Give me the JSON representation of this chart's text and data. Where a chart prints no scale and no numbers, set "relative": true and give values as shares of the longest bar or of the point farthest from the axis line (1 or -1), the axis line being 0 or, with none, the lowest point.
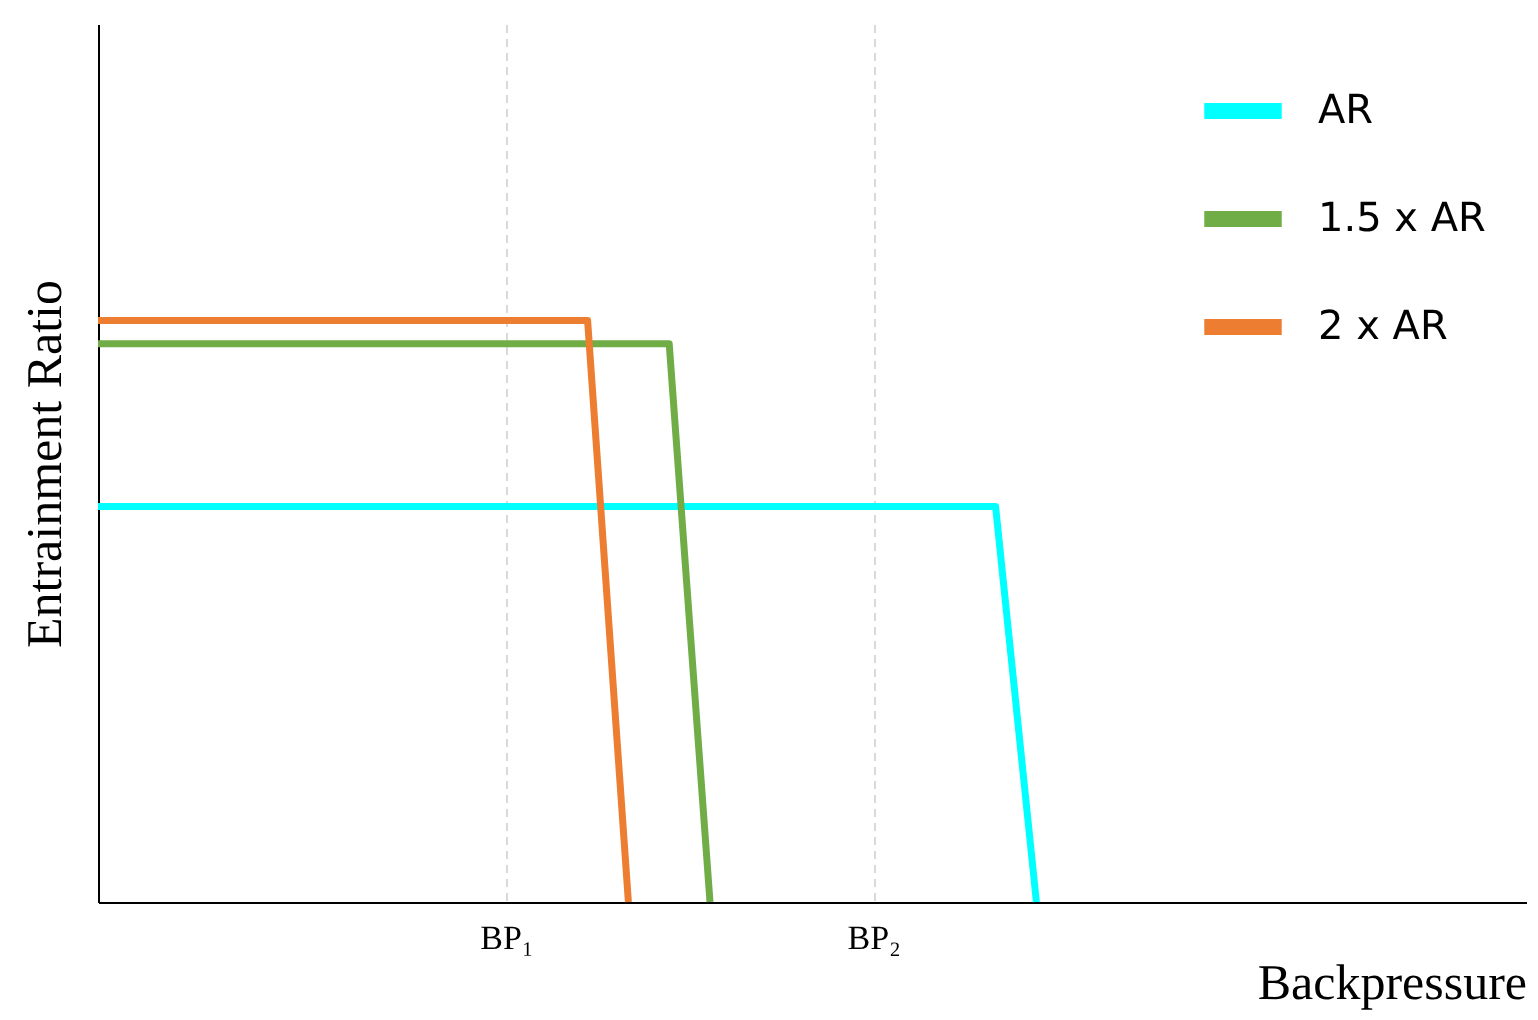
{
  "chart_data": {
    "type": "line",
    "relative": true,
    "xlabel": "Backpressure",
    "ylabel": "Entrainment Ratio",
    "categories": [
      null,
      null,
      null,
      null,
      null,
      null,
      null,
      null,
      null,
      null,
      "BP₁",
      null,
      null,
      null,
      null,
      null,
      null,
      null,
      null,
      "BP₂",
      null,
      null,
      null,
      null,
      null,
      null,
      null,
      null,
      null,
      null,
      null,
      null,
      null,
      null,
      null,
      null
    ],
    "grid": "x",
    "legend": "top right",
    "tick_labels": "x",
    "marker": "none",
    "line_style": "solid",
    "series": [
      {
        "name": "AR",
        "color": "#00ffff",
        "values": [
          0.68,
          0.68,
          0.68,
          0.68,
          0.68,
          0.68,
          0.68,
          0.68,
          0.68,
          0.68,
          0.68,
          0.68,
          0.68,
          0.68,
          0.68,
          0.68,
          0.68,
          0.68,
          0.68,
          0.68,
          0.68,
          0.68,
          0.68,
          0,
          null,
          null,
          null,
          null,
          null,
          null,
          null,
          null,
          null,
          null,
          null,
          null
        ]
      },
      {
        "name": "1.5 x AR",
        "color": "#70ad47",
        "values": [
          0.96,
          0.96,
          0.96,
          0.96,
          0.96,
          0.96,
          0.96,
          0.96,
          0.96,
          0.96,
          0.96,
          0.96,
          0.96,
          0.96,
          0.96,
          0,
          null,
          null,
          null,
          null,
          null,
          null,
          null,
          null,
          null,
          null,
          null,
          null,
          null,
          null,
          null,
          null,
          null,
          null,
          null,
          null
        ]
      },
      {
        "name": "2 x AR",
        "color": "#ed7d31",
        "values": [
          1,
          1,
          1,
          1,
          1,
          1,
          1,
          1,
          1,
          1,
          1,
          1,
          1,
          0,
          null,
          null,
          null,
          null,
          null,
          null,
          null,
          null,
          null,
          null,
          null,
          null,
          null,
          null,
          null,
          null,
          null,
          null,
          null,
          null,
          null,
          null
        ]
      }
    ]
  }
}
